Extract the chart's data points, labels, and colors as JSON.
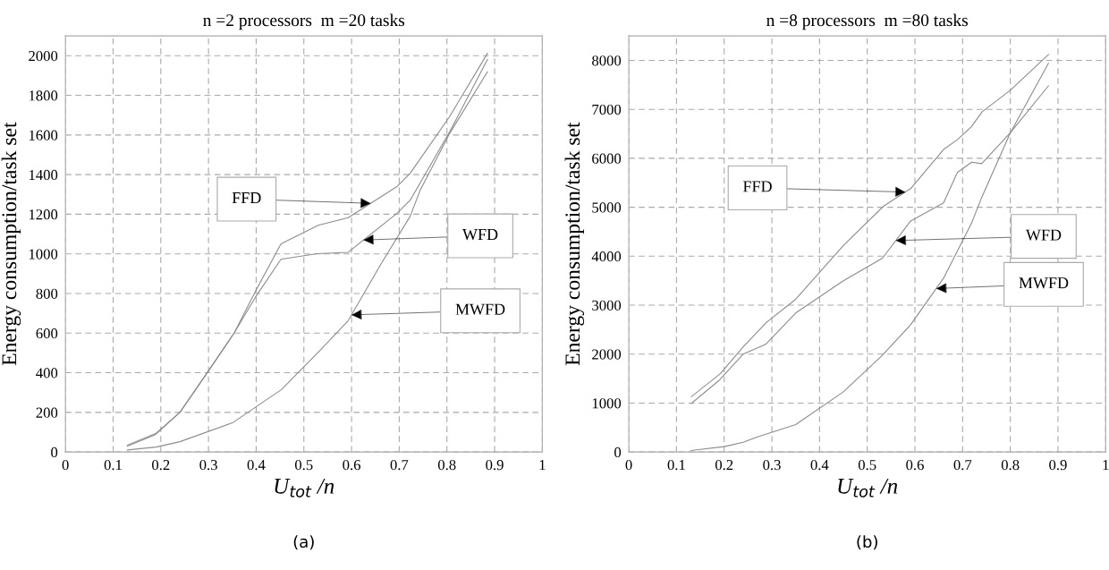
{
  "chart_data": [
    {
      "type": "line",
      "title": "n =2 processors  m =20 tasks",
      "xlabel": "U$_{tot}$ /n",
      "ylabel": "Energy consumption/task set",
      "xlim": [
        0,
        1
      ],
      "xticks": [
        0,
        0.1,
        0.2,
        0.3,
        0.4,
        0.5,
        0.6,
        0.7,
        0.8,
        0.9,
        1
      ],
      "ylim": [
        0,
        2100
      ],
      "yticks": [
        0,
        200,
        400,
        600,
        800,
        1000,
        1200,
        1400,
        1600,
        1800,
        2000
      ],
      "grid": true,
      "line_style": "solid",
      "series": [
        {
          "color": "#8c8c8c",
          "x": [
            0.13,
            0.189,
            0.24,
            0.295,
            0.354,
            0.4,
            0.452,
            0.53,
            0.593,
            0.696,
            0.723,
            0.806,
            0.885
          ],
          "values": [
            35,
            93,
            200,
            392,
            601,
            818,
            1051,
            1144,
            1183,
            1341,
            1407,
            1694,
            2012
          ]
        },
        {
          "color": "#8c8c8c",
          "x": [
            0.13,
            0.189,
            0.24,
            0.295,
            0.354,
            0.398,
            0.452,
            0.528,
            0.593,
            0.696,
            0.723,
            0.806,
            0.885
          ],
          "values": [
            30,
            88,
            200,
            392,
            601,
            780,
            973,
            1001,
            1008,
            1206,
            1271,
            1617,
            1981
          ]
        },
        {
          "color": "#8c8c8c",
          "x": [
            0.13,
            0.19,
            0.24,
            0.35,
            0.453,
            0.532,
            0.593,
            0.662,
            0.723,
            0.744,
            0.806,
            0.885
          ],
          "values": [
            10,
            25,
            52,
            147,
            315,
            508,
            663,
            950,
            1190,
            1322,
            1609,
            1919
          ]
        }
      ],
      "annotations": [
        {
          "text": "FFD",
          "x": 0.64,
          "y": 1255
        },
        {
          "text": "WFD",
          "x": 0.625,
          "y": 1070
        },
        {
          "text": "MWFD",
          "x": 0.6,
          "y": 692
        },
        "(a)"
      ]
    },
    {
      "type": "line",
      "title": "n =8 processors  m =80 tasks",
      "xlabel": "U$_{tot}$ /n",
      "ylabel": "Energy consumption/task set",
      "xlim": [
        0,
        1
      ],
      "xticks": [
        0,
        0.1,
        0.2,
        0.3,
        0.4,
        0.5,
        0.6,
        0.7,
        0.8,
        0.9,
        1
      ],
      "ylim": [
        0,
        8500
      ],
      "yticks": [
        0,
        1000,
        2000,
        3000,
        4000,
        5000,
        6000,
        7000,
        8000
      ],
      "grid": true,
      "line_style": "solid",
      "series": [
        {
          "color": "#8c8c8c",
          "x": [
            0.131,
            0.192,
            0.239,
            0.289,
            0.35,
            0.45,
            0.534,
            0.591,
            0.66,
            0.689,
            0.718,
            0.741,
            0.8,
            0.88
          ],
          "values": [
            1130,
            1600,
            2140,
            2650,
            3120,
            4220,
            5020,
            5380,
            6180,
            6380,
            6640,
            6950,
            7390,
            8120
          ]
        },
        {
          "color": "#8c8c8c",
          "x": [
            0.131,
            0.189,
            0.24,
            0.287,
            0.35,
            0.45,
            0.532,
            0.591,
            0.66,
            0.689,
            0.719,
            0.74,
            0.8,
            0.88
          ],
          "values": [
            990,
            1460,
            2000,
            2200,
            2840,
            3500,
            3960,
            4720,
            5090,
            5710,
            5920,
            5890,
            6520,
            7480
          ]
        },
        {
          "color": "#8c8c8c",
          "x": [
            0.13,
            0.2,
            0.24,
            0.267,
            0.35,
            0.45,
            0.532,
            0.591,
            0.66,
            0.719,
            0.74,
            0.8,
            0.88
          ],
          "values": [
            30,
            110,
            200,
            300,
            560,
            1230,
            1980,
            2600,
            3550,
            4680,
            5200,
            6520,
            7940
          ]
        }
      ],
      "annotations": [
        {
          "text": "FFD",
          "x": 0.58,
          "y": 5310
        },
        {
          "text": "WFD",
          "x": 0.56,
          "y": 4320
        },
        {
          "text": "MWFD",
          "x": 0.645,
          "y": 3340
        },
        "(b)"
      ]
    }
  ]
}
